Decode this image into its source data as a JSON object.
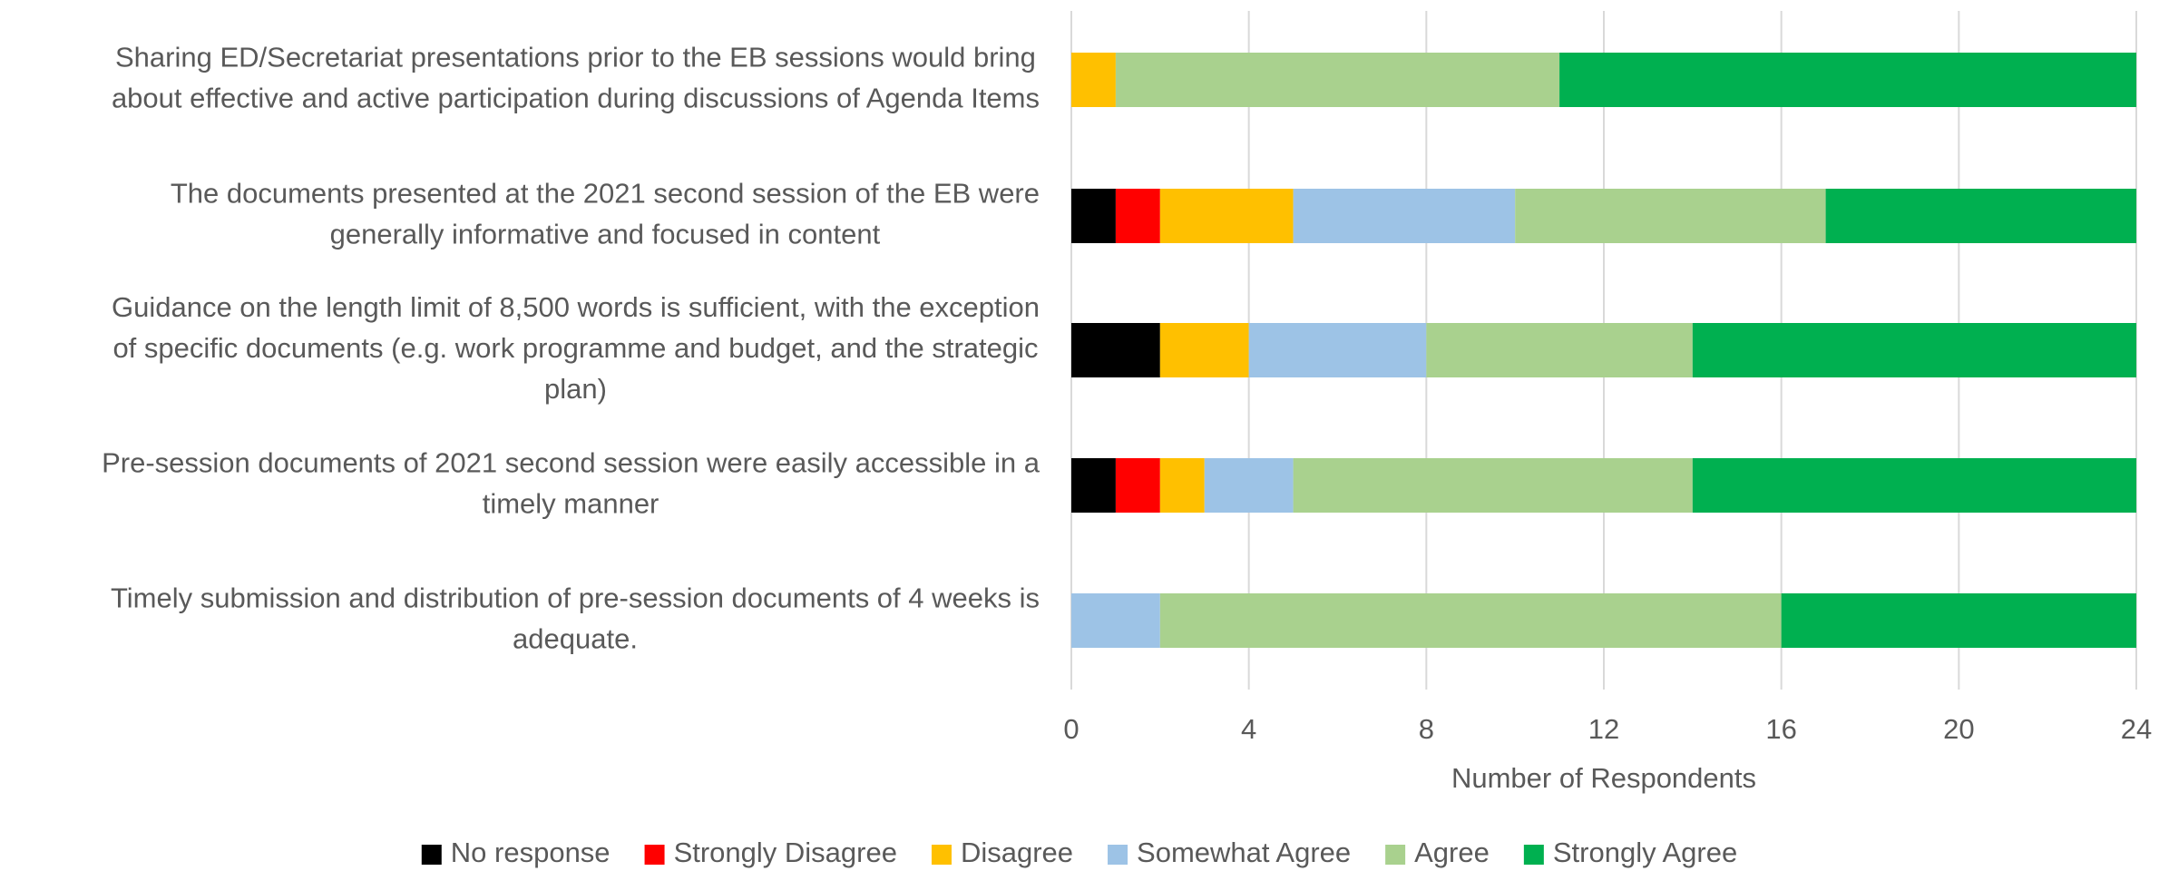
{
  "chart_data": {
    "type": "bar",
    "orientation": "horizontal",
    "stacked": true,
    "categories": [
      [
        "Sharing ED/Secretariat presentations prior to the EB sessions would bring",
        "about effective and active participation during discussions of Agenda Items"
      ],
      [
        "The documents presented at the 2021 second session of the EB were",
        "generally informative and focused in content"
      ],
      [
        "Guidance on the length limit of 8,500 words is sufficient, with the exception",
        "of specific documents (e.g. work programme and budget, and the strategic",
        "plan)"
      ],
      [
        "Pre-session documents of 2021 second session were easily accessible in a",
        "timely manner"
      ],
      [
        "Timely submission and distribution of pre-session documents of 4 weeks is",
        "adequate."
      ]
    ],
    "series": [
      {
        "name": "No response",
        "color": "#000000",
        "values": [
          0,
          1,
          2,
          1,
          0
        ]
      },
      {
        "name": "Strongly Disagree",
        "color": "#ff0000",
        "values": [
          0,
          1,
          0,
          1,
          0
        ]
      },
      {
        "name": "Disagree",
        "color": "#ffc000",
        "values": [
          1,
          3,
          2,
          1,
          0
        ]
      },
      {
        "name": "Somewhat Agree",
        "color": "#9dc3e6",
        "values": [
          0,
          5,
          4,
          2,
          2
        ]
      },
      {
        "name": "Agree",
        "color": "#a9d18e",
        "values": [
          10,
          7,
          6,
          9,
          14
        ]
      },
      {
        "name": "Strongly Agree",
        "color": "#00b050",
        "values": [
          13,
          7,
          10,
          10,
          8
        ]
      }
    ],
    "xlabel": "Number of Respondents",
    "xlim": [
      0,
      24
    ],
    "xticks": [
      0,
      4,
      8,
      12,
      16,
      20,
      24
    ],
    "grid": true,
    "legend": "bottom"
  }
}
